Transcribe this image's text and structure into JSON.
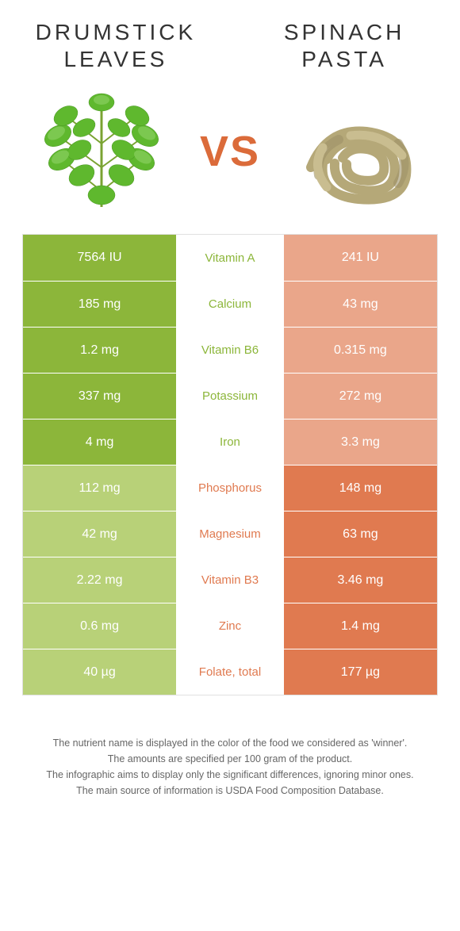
{
  "header": {
    "left_title": "Drumstick leaves",
    "right_title": "Spinach pasta",
    "vs": "VS"
  },
  "colors": {
    "left": "#8cb63a",
    "right": "#e07a50",
    "left_dim": "#b8d178",
    "right_dim": "#eaa68a",
    "nutrient_default": "#888888"
  },
  "rows": [
    {
      "nutrient": "Vitamin A",
      "left": "7564 IU",
      "right": "241 IU",
      "winner": "left"
    },
    {
      "nutrient": "Calcium",
      "left": "185 mg",
      "right": "43 mg",
      "winner": "left"
    },
    {
      "nutrient": "Vitamin B6",
      "left": "1.2 mg",
      "right": "0.315 mg",
      "winner": "left"
    },
    {
      "nutrient": "Potassium",
      "left": "337 mg",
      "right": "272 mg",
      "winner": "left"
    },
    {
      "nutrient": "Iron",
      "left": "4 mg",
      "right": "3.3 mg",
      "winner": "left"
    },
    {
      "nutrient": "Phosphorus",
      "left": "112 mg",
      "right": "148 mg",
      "winner": "right"
    },
    {
      "nutrient": "Magnesium",
      "left": "42 mg",
      "right": "63 mg",
      "winner": "right"
    },
    {
      "nutrient": "Vitamin B3",
      "left": "2.22 mg",
      "right": "3.46 mg",
      "winner": "right"
    },
    {
      "nutrient": "Zinc",
      "left": "0.6 mg",
      "right": "1.4 mg",
      "winner": "right"
    },
    {
      "nutrient": "Folate, total",
      "left": "40 µg",
      "right": "177 µg",
      "winner": "right"
    }
  ],
  "footnote": {
    "l1": "The nutrient name is displayed in the color of the food we considered as 'winner'.",
    "l2": "The amounts are specified per 100 gram of the product.",
    "l3": "The infographic aims to display only the significant differences, ignoring minor ones.",
    "l4": "The main source of information is USDA Food Composition Database."
  }
}
